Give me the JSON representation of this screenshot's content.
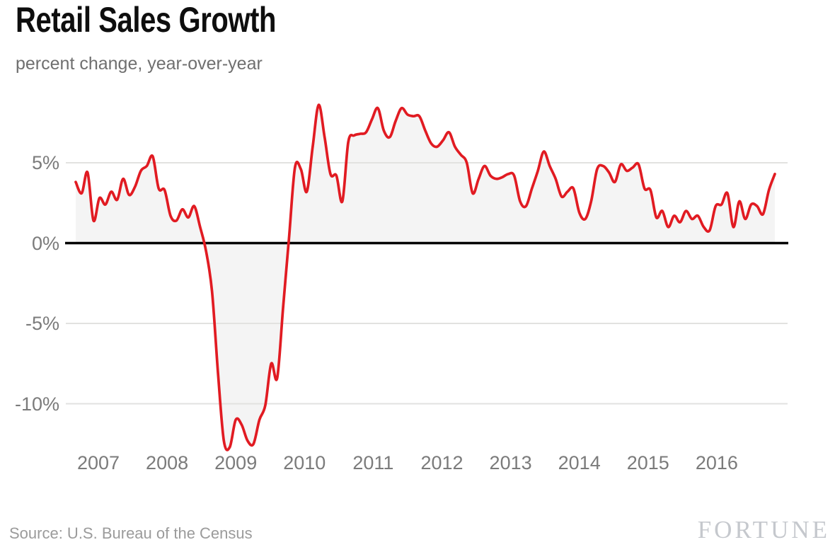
{
  "header": {
    "title": "Retail Sales Growth",
    "subtitle": "percent change, year-over-year"
  },
  "footer": {
    "source": "Source: U.S. Bureau of the Census",
    "brand": "FORTUNE"
  },
  "chart_data": {
    "type": "area",
    "title": "Retail Sales Growth",
    "subtitle": "percent change, year-over-year",
    "source": "Source: U.S. Bureau of the Census",
    "legend": "none",
    "grid": "horizontal gridlines at 5, -5, -10; emphasized black baseline at 0",
    "ylim": [
      -13.6,
      9.2
    ],
    "y_axis": {
      "unit": "percent",
      "ticks": [
        {
          "label": "5%",
          "value": 5
        },
        {
          "label": "0%",
          "value": 0
        },
        {
          "label": "-5%",
          "value": -5
        },
        {
          "label": "-10%",
          "value": -10
        }
      ]
    },
    "x_axis": {
      "tick_labels": [
        "2007",
        "2008",
        "2009",
        "2010",
        "2011",
        "2012",
        "2013",
        "2014",
        "2015",
        "2016"
      ]
    },
    "colors": {
      "line": "#e11b22",
      "fill": "#f4f4f4",
      "zero_line": "#000000",
      "grid": "#e2e2e0",
      "tick_text": "#7b7b7b"
    },
    "series": [
      {
        "name": "Retail sales, percent change year-over-year",
        "frequency": "monthly",
        "unit": "percent",
        "values": [
          3.8,
          3.1,
          4.4,
          1.4,
          2.8,
          2.4,
          3.2,
          2.7,
          4.0,
          3.0,
          3.5,
          4.5,
          4.8,
          5.4,
          3.4,
          3.3,
          1.7,
          1.4,
          2.1,
          1.6,
          2.3,
          1.0,
          -0.5,
          -3.0,
          -8.0,
          -12.3,
          -12.7,
          -11.0,
          -11.3,
          -12.3,
          -12.5,
          -11.0,
          -10.1,
          -7.5,
          -8.4,
          -4.0,
          0.3,
          4.7,
          4.6,
          3.2,
          6.0,
          8.6,
          6.6,
          4.3,
          4.2,
          2.6,
          6.3,
          6.7,
          6.8,
          6.9,
          7.7,
          8.4,
          7.0,
          6.6,
          7.6,
          8.4,
          8.0,
          7.9,
          7.9,
          7.0,
          6.2,
          6.0,
          6.4,
          6.9,
          6.0,
          5.5,
          5.0,
          3.1,
          4.0,
          4.8,
          4.2,
          4.0,
          4.1,
          4.3,
          4.2,
          2.6,
          2.3,
          3.4,
          4.5,
          5.7,
          4.8,
          4.0,
          2.9,
          3.2,
          3.4,
          1.9,
          1.5,
          2.6,
          4.6,
          4.8,
          4.4,
          3.8,
          4.9,
          4.5,
          4.7,
          4.9,
          3.4,
          3.3,
          1.6,
          2.0,
          1.0,
          1.7,
          1.3,
          2.0,
          1.5,
          1.7,
          1.0,
          0.8,
          2.3,
          2.4,
          3.1,
          1.0,
          2.6,
          1.5,
          2.4,
          2.3,
          1.8,
          3.3,
          4.3
        ]
      }
    ]
  }
}
